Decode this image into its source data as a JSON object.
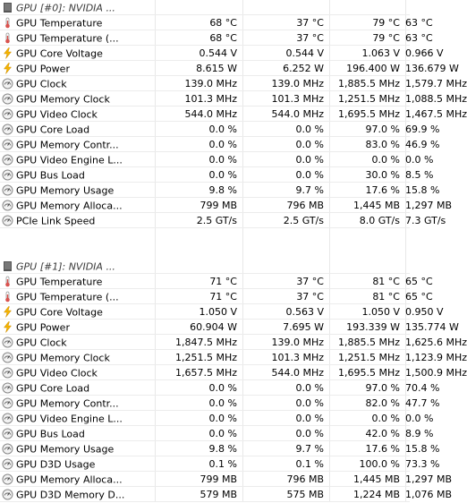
{
  "sections": [
    {
      "title": "GPU [#0]: NVIDIA ...",
      "rows": [
        {
          "icon": "thermometer-icon",
          "label": "GPU Temperature",
          "v": [
            "68 °C",
            "37 °C",
            "79 °C",
            "63 °C"
          ]
        },
        {
          "icon": "thermometer-icon",
          "label": "GPU Temperature (...",
          "v": [
            "68 °C",
            "37 °C",
            "79 °C",
            "63 °C"
          ]
        },
        {
          "icon": "lightning-icon",
          "label": "GPU Core Voltage",
          "v": [
            "0.544 V",
            "0.544 V",
            "1.063 V",
            "0.966 V"
          ]
        },
        {
          "icon": "lightning-icon",
          "label": "GPU Power",
          "v": [
            "8.615 W",
            "6.252 W",
            "196.400 W",
            "136.679 W"
          ]
        },
        {
          "icon": "gauge-icon",
          "label": "GPU Clock",
          "v": [
            "139.0 MHz",
            "139.0 MHz",
            "1,885.5 MHz",
            "1,579.7 MHz"
          ]
        },
        {
          "icon": "gauge-icon",
          "label": "GPU Memory Clock",
          "v": [
            "101.3 MHz",
            "101.3 MHz",
            "1,251.5 MHz",
            "1,088.5 MHz"
          ]
        },
        {
          "icon": "gauge-icon",
          "label": "GPU Video Clock",
          "v": [
            "544.0 MHz",
            "544.0 MHz",
            "1,695.5 MHz",
            "1,467.5 MHz"
          ]
        },
        {
          "icon": "gauge-icon",
          "label": "GPU Core Load",
          "v": [
            "0.0 %",
            "0.0 %",
            "97.0 %",
            "69.9 %"
          ]
        },
        {
          "icon": "gauge-icon",
          "label": "GPU Memory Contr...",
          "v": [
            "0.0 %",
            "0.0 %",
            "83.0 %",
            "46.9 %"
          ]
        },
        {
          "icon": "gauge-icon",
          "label": "GPU Video Engine L...",
          "v": [
            "0.0 %",
            "0.0 %",
            "0.0 %",
            "0.0 %"
          ]
        },
        {
          "icon": "gauge-icon",
          "label": "GPU Bus Load",
          "v": [
            "0.0 %",
            "0.0 %",
            "30.0 %",
            "8.5 %"
          ]
        },
        {
          "icon": "gauge-icon",
          "label": "GPU Memory Usage",
          "v": [
            "9.8 %",
            "9.7 %",
            "17.6 %",
            "15.8 %"
          ]
        },
        {
          "icon": "gauge-icon",
          "label": "GPU Memory Alloca...",
          "v": [
            "799 MB",
            "796 MB",
            "1,445 MB",
            "1,297 MB"
          ]
        },
        {
          "icon": "gauge-icon",
          "label": "PCIe Link Speed",
          "v": [
            "2.5 GT/s",
            "2.5 GT/s",
            "8.0 GT/s",
            "7.3 GT/s"
          ]
        }
      ]
    },
    {
      "title": "GPU [#1]: NVIDIA ...",
      "rows": [
        {
          "icon": "thermometer-icon",
          "label": "GPU Temperature",
          "v": [
            "71 °C",
            "37 °C",
            "81 °C",
            "65 °C"
          ]
        },
        {
          "icon": "thermometer-icon",
          "label": "GPU Temperature (...",
          "v": [
            "71 °C",
            "37 °C",
            "81 °C",
            "65 °C"
          ]
        },
        {
          "icon": "lightning-icon",
          "label": "GPU Core Voltage",
          "v": [
            "1.050 V",
            "0.563 V",
            "1.050 V",
            "0.950 V"
          ]
        },
        {
          "icon": "lightning-icon",
          "label": "GPU Power",
          "v": [
            "60.904 W",
            "7.695 W",
            "193.339 W",
            "135.774 W"
          ]
        },
        {
          "icon": "gauge-icon",
          "label": "GPU Clock",
          "v": [
            "1,847.5 MHz",
            "139.0 MHz",
            "1,885.5 MHz",
            "1,625.6 MHz"
          ]
        },
        {
          "icon": "gauge-icon",
          "label": "GPU Memory Clock",
          "v": [
            "1,251.5 MHz",
            "101.3 MHz",
            "1,251.5 MHz",
            "1,123.9 MHz"
          ]
        },
        {
          "icon": "gauge-icon",
          "label": "GPU Video Clock",
          "v": [
            "1,657.5 MHz",
            "544.0 MHz",
            "1,695.5 MHz",
            "1,500.9 MHz"
          ]
        },
        {
          "icon": "gauge-icon",
          "label": "GPU Core Load",
          "v": [
            "0.0 %",
            "0.0 %",
            "97.0 %",
            "70.4 %"
          ]
        },
        {
          "icon": "gauge-icon",
          "label": "GPU Memory Contr...",
          "v": [
            "0.0 %",
            "0.0 %",
            "82.0 %",
            "47.7 %"
          ]
        },
        {
          "icon": "gauge-icon",
          "label": "GPU Video Engine L...",
          "v": [
            "0.0 %",
            "0.0 %",
            "0.0 %",
            "0.0 %"
          ]
        },
        {
          "icon": "gauge-icon",
          "label": "GPU Bus Load",
          "v": [
            "0.0 %",
            "0.0 %",
            "42.0 %",
            "8.9 %"
          ]
        },
        {
          "icon": "gauge-icon",
          "label": "GPU Memory Usage",
          "v": [
            "9.8 %",
            "9.7 %",
            "17.6 %",
            "15.8 %"
          ]
        },
        {
          "icon": "gauge-icon",
          "label": "GPU D3D Usage",
          "v": [
            "0.1 %",
            "0.1 %",
            "100.0 %",
            "73.3 %"
          ]
        },
        {
          "icon": "gauge-icon",
          "label": "GPU Memory Alloca...",
          "v": [
            "799 MB",
            "796 MB",
            "1,445 MB",
            "1,297 MB"
          ]
        },
        {
          "icon": "gauge-icon",
          "label": "GPU D3D Memory D...",
          "v": [
            "579 MB",
            "575 MB",
            "1,224 MB",
            "1,076 MB"
          ]
        }
      ]
    }
  ],
  "colors": {
    "thermometer": "#d9534f",
    "lightning": "#f5b400",
    "gauge": "#888888",
    "chip": "#555555",
    "header_text": "#3a3a3a"
  }
}
